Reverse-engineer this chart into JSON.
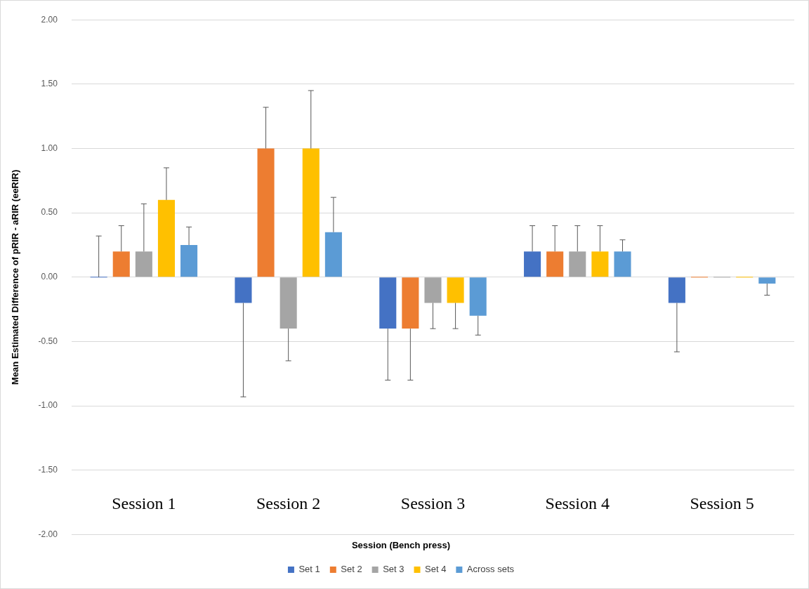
{
  "chart_data": {
    "type": "bar",
    "xlabel": "Session (Bench press)",
    "ylabel": "Mean Estimated Difference of pRIR - aRIR (eeRIR)",
    "categories": [
      "Session 1",
      "Session 2",
      "Session 3",
      "Session 4",
      "Session 5"
    ],
    "series": [
      {
        "name": "Set 1",
        "color": "#4472c4",
        "values": [
          0,
          -0.2,
          -0.4,
          0.2,
          -0.2
        ],
        "errors": [
          [
            0,
            0.32
          ],
          [
            -0.93,
            -0.2
          ],
          [
            -0.8,
            -0.4
          ],
          [
            0.2,
            0.4
          ],
          [
            -0.58,
            -0.2
          ]
        ]
      },
      {
        "name": "Set 2",
        "color": "#ed7d31",
        "values": [
          0.2,
          1.0,
          -0.4,
          0.2,
          0
        ],
        "errors": [
          [
            0.2,
            0.4
          ],
          [
            1.0,
            1.32
          ],
          [
            -0.8,
            -0.4
          ],
          [
            0.2,
            0.4
          ],
          null
        ]
      },
      {
        "name": "Set 3",
        "color": "#a5a5a5",
        "values": [
          0.2,
          -0.4,
          -0.2,
          0.2,
          0
        ],
        "errors": [
          [
            0.2,
            0.57
          ],
          [
            -0.65,
            -0.4
          ],
          [
            -0.4,
            -0.2
          ],
          [
            0.2,
            0.4
          ],
          null
        ]
      },
      {
        "name": "Set 4",
        "color": "#ffc000",
        "values": [
          0.6,
          1.0,
          -0.2,
          0.2,
          0
        ],
        "errors": [
          [
            0.6,
            0.85
          ],
          [
            1.0,
            1.45
          ],
          [
            -0.4,
            -0.2
          ],
          [
            0.2,
            0.4
          ],
          null
        ]
      },
      {
        "name": "Across sets",
        "color": "#5b9bd5",
        "values": [
          0.25,
          0.35,
          -0.3,
          0.2,
          -0.05
        ],
        "errors": [
          [
            0.25,
            0.39
          ],
          [
            0.35,
            0.62
          ],
          [
            -0.45,
            -0.3
          ],
          [
            0.2,
            0.29
          ],
          [
            -0.14,
            -0.05
          ]
        ]
      }
    ],
    "ylim": [
      -2,
      2
    ],
    "yticks": [
      {
        "value": -2,
        "label": "-2.00"
      },
      {
        "value": -1.5,
        "label": "-1.50"
      },
      {
        "value": -1,
        "label": "-1.00"
      },
      {
        "value": -0.5,
        "label": "-0.50"
      },
      {
        "value": 0,
        "label": "0.00"
      },
      {
        "value": 0.5,
        "label": "0.50"
      },
      {
        "value": 1,
        "label": "1.00"
      },
      {
        "value": 1.5,
        "label": "1.50"
      },
      {
        "value": 2,
        "label": "2.00"
      }
    ],
    "grid": "y",
    "legend": "bottom"
  }
}
